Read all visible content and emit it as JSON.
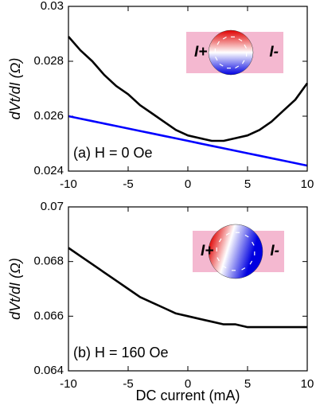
{
  "chart_data": [
    {
      "type": "line",
      "y_label": "dVt/dI (Ω)",
      "panel_label": "(a) H = 0 Oe",
      "inset_left": "I+",
      "inset_right": "I-",
      "x": [
        -10,
        -9,
        -8,
        -7,
        -6,
        -5,
        -4,
        -3,
        -2,
        -1,
        0,
        1,
        2,
        3,
        4,
        5,
        6,
        7,
        8,
        9,
        10
      ],
      "xlim": [
        -10,
        10
      ],
      "xticks": [
        -10,
        -5,
        0,
        5,
        10
      ],
      "ylim": [
        0.024,
        0.03
      ],
      "yticks": [
        0.024,
        0.026,
        0.028,
        0.03
      ],
      "series": [
        {
          "color": "#000000",
          "values": [
            0.0289,
            0.0284,
            0.028,
            0.0275,
            0.0271,
            0.0268,
            0.0264,
            0.0261,
            0.0258,
            0.0255,
            0.0253,
            0.0252,
            0.0251,
            0.0251,
            0.0252,
            0.0253,
            0.0255,
            0.0258,
            0.0262,
            0.0266,
            0.0272
          ]
        },
        {
          "color": "#0000ff",
          "values": [
            0.026,
            0.02591,
            0.02582,
            0.02573,
            0.02564,
            0.02555,
            0.02546,
            0.02537,
            0.02528,
            0.02519,
            0.0251,
            0.02501,
            0.02492,
            0.02483,
            0.02474,
            0.02465,
            0.02456,
            0.02447,
            0.02438,
            0.02429,
            0.0242
          ]
        }
      ]
    },
    {
      "type": "line",
      "y_label": "dVt/dI (Ω)",
      "panel_label": "(b) H = 160 Oe",
      "inset_left": "I+",
      "inset_right": "I-",
      "x_label": "DC current (mA)",
      "x": [
        -10,
        -9,
        -8,
        -7,
        -6,
        -5,
        -4,
        -3,
        -2,
        -1,
        0,
        1,
        2,
        3,
        4,
        5,
        6,
        7,
        8,
        9,
        10
      ],
      "xlim": [
        -10,
        10
      ],
      "xticks": [
        -10,
        -5,
        0,
        5,
        10
      ],
      "ylim": [
        0.064,
        0.07
      ],
      "yticks": [
        0.064,
        0.066,
        0.068,
        0.07
      ],
      "series": [
        {
          "color": "#000000",
          "values": [
            0.0685,
            0.0682,
            0.0679,
            0.0676,
            0.0673,
            0.067,
            0.0667,
            0.0665,
            0.0663,
            0.0661,
            0.066,
            0.0659,
            0.0658,
            0.0657,
            0.0657,
            0.0656,
            0.0656,
            0.0656,
            0.0656,
            0.0656,
            0.0656
          ]
        }
      ]
    }
  ]
}
